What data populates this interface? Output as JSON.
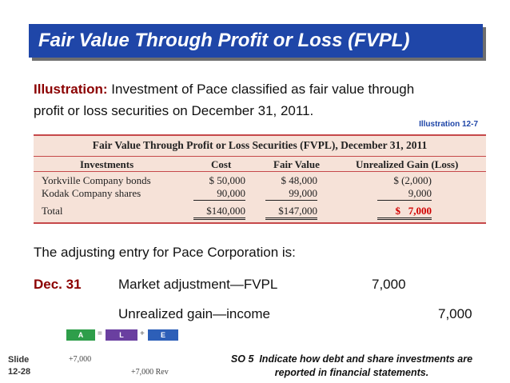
{
  "title": "Fair Value Through Profit or Loss (FVPL)",
  "illustration": {
    "label": "Illustration:",
    "line1": "Investment of Pace classified as fair value through",
    "line2": "profit or loss securities on December 31, 2011."
  },
  "illustration_ref": "Illustration 12-7",
  "table": {
    "title": "Fair Value Through Profit or Loss Securities (FVPL), December 31, 2011",
    "headers": [
      "Investments",
      "Cost",
      "Fair Value",
      "Unrealized Gain (Loss)"
    ],
    "rows": [
      [
        "Yorkville Company bonds",
        "$ 50,000",
        "$ 48,000",
        "$ (2,000)"
      ],
      [
        "Kodak Company shares",
        "90,000",
        "99,000",
        "9,000"
      ]
    ],
    "total": [
      "Total",
      "$140,000",
      "$147,000",
      "$   7,000"
    ]
  },
  "adjusting_intro": "The adjusting entry for Pace Corporation is:",
  "entry": {
    "date": "Dec. 31",
    "debit_account": "Market adjustment—FVPL",
    "debit_amount": "7,000",
    "credit_account": "Unrealized gain—income",
    "credit_amount": "7,000"
  },
  "equation": {
    "a": "A",
    "eq": "=",
    "l": "L",
    "plus": "+",
    "e": "E",
    "a_value": "+7,000",
    "e_value": "+7,000 Rev",
    "colors": {
      "a": "#2e9e4a",
      "l": "#6a3fa0",
      "e": "#2d5fb8"
    }
  },
  "slide": {
    "label": "Slide",
    "number": "12-28"
  },
  "so": {
    "line1": "SO 5  Indicate how debt and share investments are",
    "line2": "reported in financial statements."
  }
}
